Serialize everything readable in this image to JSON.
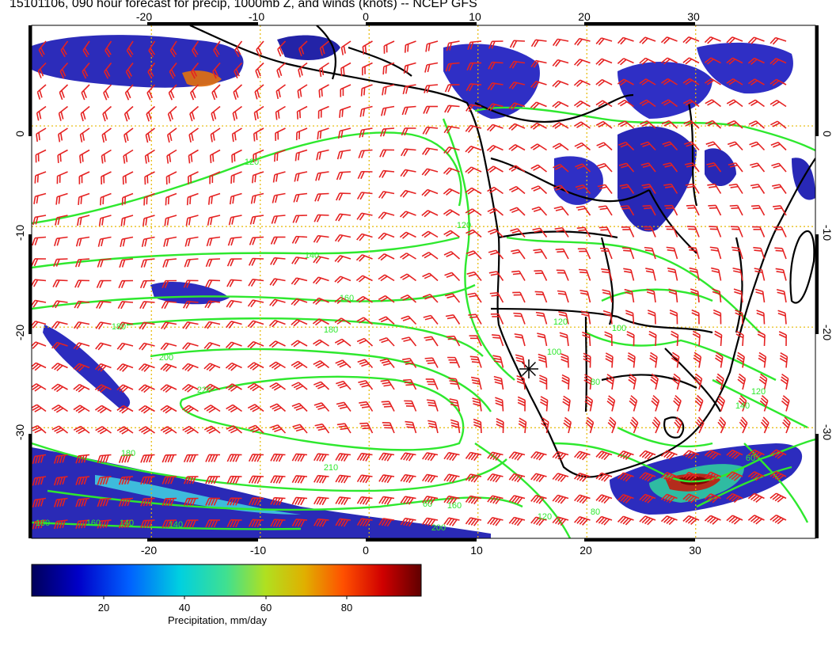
{
  "title": "15101106, 090 hour forecast for precip, 1000mb Z, and winds (knots) -- NCEP GFS",
  "map": {
    "lon_range": [
      -31,
      41
    ],
    "lat_range": [
      -41,
      10
    ],
    "grid_lons": [
      -20,
      -10,
      0,
      10,
      20,
      30
    ],
    "grid_lats": [
      0,
      -10,
      -20,
      -30
    ],
    "top_lon_labels": [
      "-20",
      "-10",
      "0",
      "10",
      "20",
      "30"
    ],
    "bottom_lon_labels": [
      "-20",
      "-10",
      "0",
      "10",
      "20",
      "30"
    ],
    "left_lat_labels": [
      "0",
      "-10",
      "-20",
      "-30"
    ],
    "right_lat_labels": [
      "0",
      "-10",
      "-20",
      "-30"
    ],
    "contour_color": "#2ee82e",
    "barb_color": "#e52222",
    "coast_color": "#000000",
    "grid_color": "#e6b800",
    "contour_labels": [
      "120",
      "120",
      "140",
      "160",
      "180",
      "180",
      "200",
      "220",
      "210",
      "180",
      "160",
      "140",
      "120",
      "100",
      "80",
      "120",
      "140",
      "60",
      "80",
      "180",
      "200",
      "160",
      "140",
      "120",
      "100",
      "60"
    ]
  },
  "colorbar": {
    "ticks": [
      "20",
      "40",
      "60",
      "80"
    ],
    "label": "Precipitation, mm/day",
    "colors": [
      "#00008b",
      "#0000ff",
      "#0080ff",
      "#00e0e0",
      "#40e080",
      "#c0e020",
      "#e0c000",
      "#ff6000",
      "#e00000",
      "#7a0000"
    ]
  }
}
